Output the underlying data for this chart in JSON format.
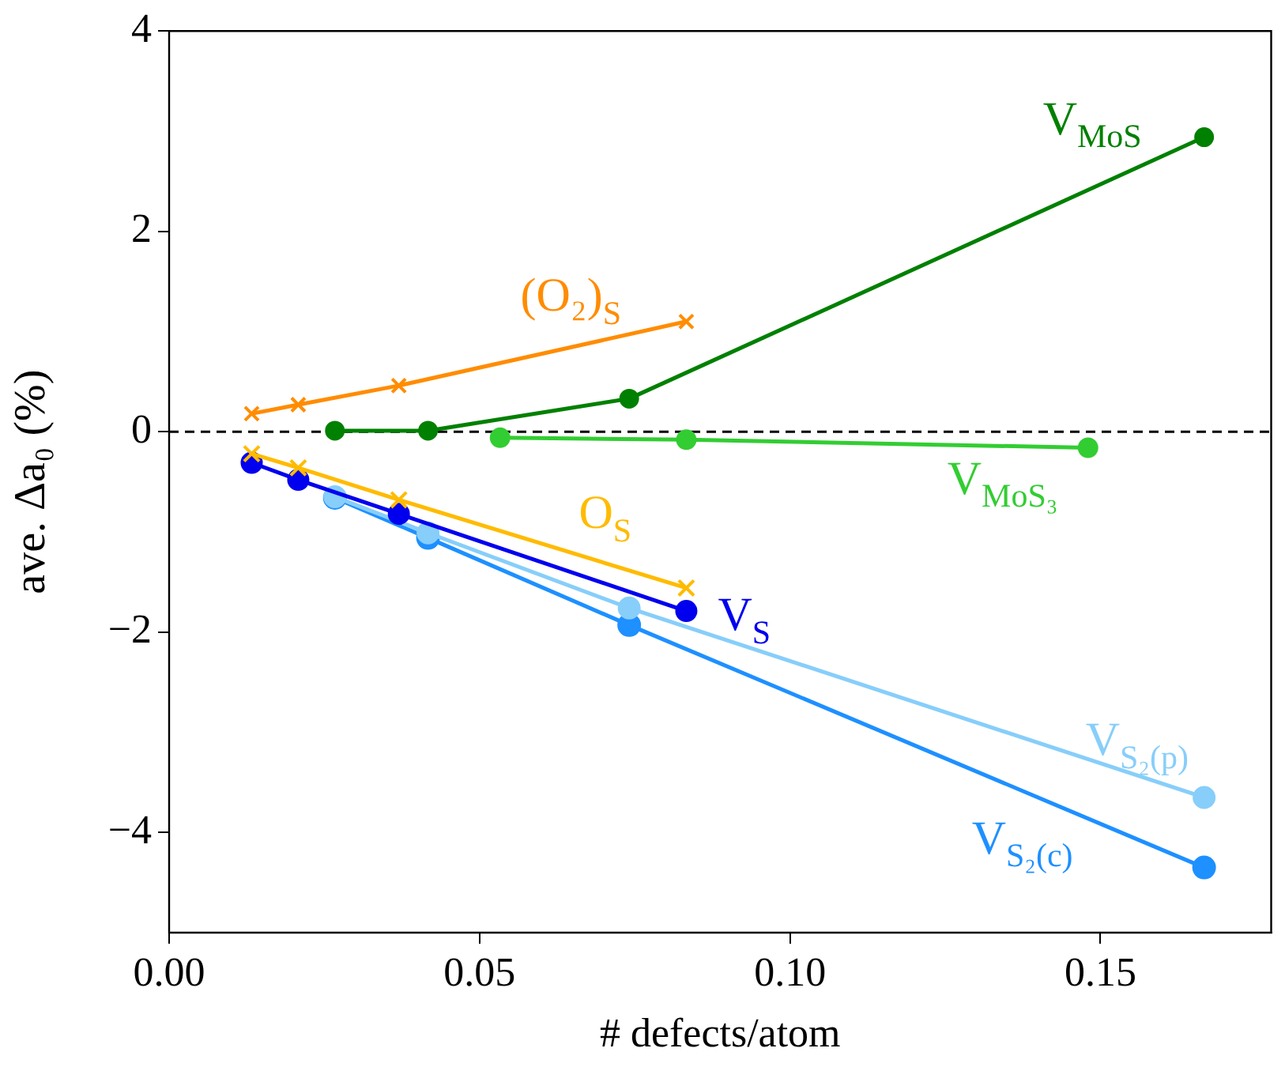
{
  "chart_data": {
    "type": "line",
    "xlabel": "# defects/atom",
    "ylabel": "ave. Δa₀ (%)",
    "xlim": [
      0,
      0.1775
    ],
    "xticks": [
      {
        "value": 0,
        "label": "0.00"
      },
      {
        "value": 0.05,
        "label": "0.05"
      },
      {
        "value": 0.1,
        "label": "0.10"
      },
      {
        "value": 0.15,
        "label": "0.15"
      }
    ],
    "ylim": [
      -5,
      4
    ],
    "yticks": [
      {
        "value": -4,
        "label": "−4"
      },
      {
        "value": -2,
        "label": "−2"
      },
      0,
      2,
      4
    ],
    "grid": false,
    "legend": false,
    "ref_lines": [
      {
        "axis": "y",
        "value": 0,
        "color": "#000000",
        "line_style": "dashed"
      }
    ],
    "series": [
      {
        "name": "(O₂)$_{S}$",
        "color": "#ff8c00",
        "marker": "cross",
        "x": [
          0.0133,
          0.0208,
          0.037,
          0.0833
        ],
        "values": [
          0.18,
          0.27,
          0.46,
          1.1
        ]
      },
      {
        "name": "V$_{MoS}$",
        "color": "#008000",
        "marker": "circle",
        "x": [
          0.0267,
          0.0417,
          0.0741,
          0.1667
        ],
        "values": [
          0.01,
          0.01,
          0.33,
          2.94
        ]
      },
      {
        "name": "V$_{MoS₃}$",
        "color": "#32cd32",
        "marker": "circle",
        "x": [
          0.0533,
          0.0833,
          0.148
        ],
        "values": [
          -0.06,
          -0.08,
          -0.16
        ]
      },
      {
        "name": "O$_{S}$",
        "color": "#ffbb00",
        "marker": "cross",
        "x": [
          0.0133,
          0.0208,
          0.037,
          0.0833
        ],
        "values": [
          -0.22,
          -0.36,
          -0.68,
          -1.56
        ]
      },
      {
        "name": "V$_{S}$",
        "color": "#0000ee",
        "marker": "circle",
        "x": [
          0.0133,
          0.0208,
          0.037,
          0.0833
        ],
        "values": [
          -0.31,
          -0.48,
          -0.82,
          -1.79
        ]
      },
      {
        "name": "V$_{S₂(p)}$",
        "color": "#87cefa",
        "marker": "circle",
        "x": [
          0.0267,
          0.0417,
          0.0741,
          0.1667
        ],
        "values": [
          -0.65,
          -1.01,
          -1.76,
          -3.65
        ]
      },
      {
        "name": "V$_{S₂(c)}$",
        "color": "#1e90ff",
        "marker": "circle",
        "x": [
          0.0267,
          0.0417,
          0.0741,
          0.1667
        ],
        "values": [
          -0.66,
          -1.06,
          -1.93,
          -4.35
        ]
      }
    ]
  }
}
